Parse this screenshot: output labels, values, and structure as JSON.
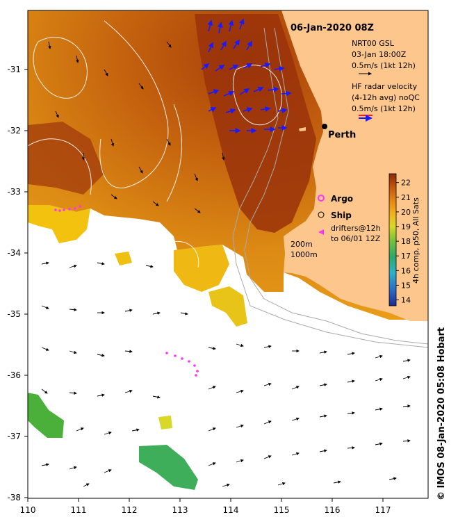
{
  "map": {
    "title": "06-Jan-2020 08Z",
    "credit": "© IMOS 08-Jan-2020 05:08 Hobart",
    "lon_ticks": [
      "110",
      "111",
      "112",
      "113",
      "114",
      "115",
      "116",
      "117"
    ],
    "lat_ticks": [
      "-31",
      "-32",
      "-33",
      "-34",
      "-35",
      "-36",
      "-37",
      "-38"
    ],
    "lon_range": [
      110,
      117.85
    ],
    "lat_range": [
      -38,
      -30.15
    ],
    "city": {
      "name": "Perth",
      "lon": 115.86,
      "lat": -31.95
    },
    "depth_labels": [
      "200m",
      "1000m"
    ],
    "colors": {
      "land": "#fdc68c",
      "ocean_blank": "#ffffff",
      "radar_red": "#ff1a1a",
      "radar_blue": "#1a1aff",
      "argo": "#ff33ff",
      "drifter": "#ff33ff"
    }
  },
  "legend": {
    "gsl_title": "NRT00 GSL",
    "gsl_time": "03-Jan 18:00Z",
    "gsl_scale": "0.5m/s (1kt 12h)",
    "hf_title": "HF radar velocity",
    "hf_sub": "(4-12h avg) noQC",
    "hf_scale": "0.5m/s (1kt 12h)",
    "argo_label": "Argo",
    "ship_label": "Ship",
    "drifters_line1": "drifters@12h",
    "drifters_line2": "to 06/01 12Z"
  },
  "colorbar": {
    "ticks": [
      "22",
      "21",
      "20",
      "19",
      "18",
      "17",
      "16",
      "15",
      "14"
    ],
    "min": 13.6,
    "max": 22.6,
    "label": "4h comp, p50, All Sats"
  }
}
